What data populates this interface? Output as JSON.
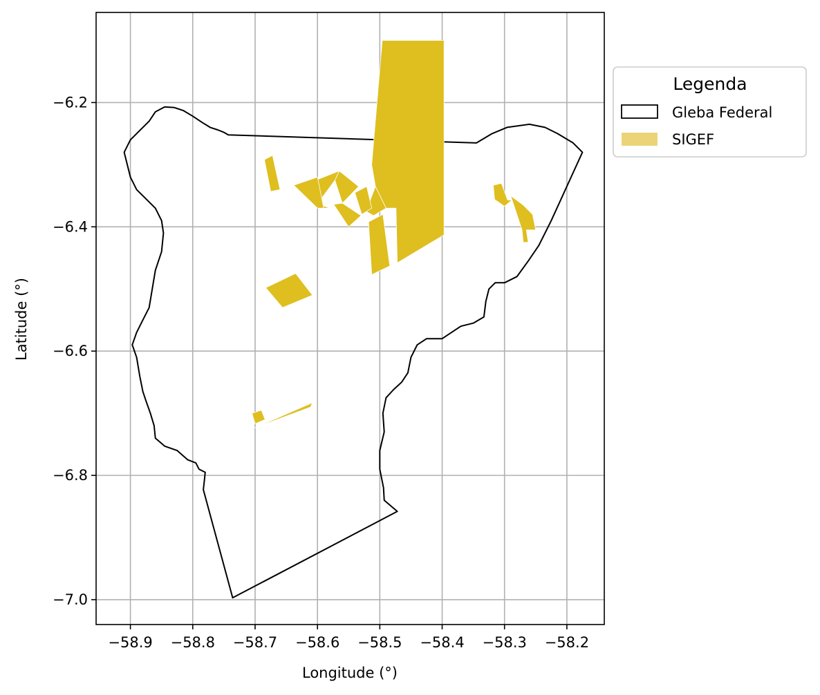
{
  "chart_data": {
    "type": "map",
    "xlabel": "Longitude (°)",
    "ylabel": "Latitude (°)",
    "xlim": [
      -58.955,
      -58.14
    ],
    "ylim": [
      -7.04,
      -6.055
    ],
    "x_ticks": [
      -58.9,
      -58.8,
      -58.7,
      -58.6,
      -58.5,
      -58.4,
      -58.3,
      -58.2
    ],
    "x_tick_labels": [
      "−58.9",
      "−58.8",
      "−58.7",
      "−58.6",
      "−58.5",
      "−58.4",
      "−58.3",
      "−58.2"
    ],
    "y_ticks": [
      -6.2,
      -6.4,
      -6.6,
      -6.8,
      -7.0
    ],
    "y_tick_labels": [
      "−6.2",
      "−6.4",
      "−6.6",
      "−6.8",
      "−7.0"
    ],
    "grid": true,
    "legend": {
      "title": "Legenda",
      "placement": "outside-right-top",
      "entries": [
        {
          "label": "Gleba Federal",
          "style": "outline",
          "color": "#000000"
        },
        {
          "label": "SIGEF",
          "style": "fill",
          "color": "#ebd478"
        }
      ]
    },
    "colors": {
      "sigef_fill": "#dfbe1f",
      "gleba_edge": "#000000",
      "grid": "#b0b0b0"
    },
    "gleba_federal": [
      [
        -58.743,
        -6.252
      ],
      [
        -58.345,
        -6.265
      ],
      [
        -58.32,
        -6.25
      ],
      [
        -58.296,
        -6.24
      ],
      [
        -58.26,
        -6.235
      ],
      [
        -58.235,
        -6.24
      ],
      [
        -58.215,
        -6.25
      ],
      [
        -58.19,
        -6.265
      ],
      [
        -58.175,
        -6.28
      ],
      [
        -58.225,
        -6.39
      ],
      [
        -58.245,
        -6.43
      ],
      [
        -58.262,
        -6.455
      ],
      [
        -58.28,
        -6.48
      ],
      [
        -58.3,
        -6.49
      ],
      [
        -58.315,
        -6.49
      ],
      [
        -58.325,
        -6.5
      ],
      [
        -58.33,
        -6.52
      ],
      [
        -58.333,
        -6.545
      ],
      [
        -58.35,
        -6.555
      ],
      [
        -58.37,
        -6.56
      ],
      [
        -58.385,
        -6.57
      ],
      [
        -58.4,
        -6.58
      ],
      [
        -58.425,
        -6.58
      ],
      [
        -58.44,
        -6.59
      ],
      [
        -58.45,
        -6.61
      ],
      [
        -58.455,
        -6.635
      ],
      [
        -58.465,
        -6.65
      ],
      [
        -58.478,
        -6.662
      ],
      [
        -58.49,
        -6.675
      ],
      [
        -58.495,
        -6.7
      ],
      [
        -58.493,
        -6.73
      ],
      [
        -58.5,
        -6.76
      ],
      [
        -58.5,
        -6.79
      ],
      [
        -58.494,
        -6.82
      ],
      [
        -58.493,
        -6.84
      ],
      [
        -58.472,
        -6.858
      ],
      [
        -58.736,
        -6.997
      ],
      [
        -58.783,
        -6.823
      ],
      [
        -58.781,
        -6.805
      ],
      [
        -58.78,
        -6.795
      ],
      [
        -58.79,
        -6.79
      ],
      [
        -58.795,
        -6.78
      ],
      [
        -58.808,
        -6.775
      ],
      [
        -58.825,
        -6.76
      ],
      [
        -58.845,
        -6.753
      ],
      [
        -58.86,
        -6.74
      ],
      [
        -58.862,
        -6.72
      ],
      [
        -58.868,
        -6.7
      ],
      [
        -58.875,
        -6.68
      ],
      [
        -58.88,
        -6.665
      ],
      [
        -58.885,
        -6.64
      ],
      [
        -58.89,
        -6.61
      ],
      [
        -58.897,
        -6.59
      ],
      [
        -58.89,
        -6.57
      ],
      [
        -58.88,
        -6.55
      ],
      [
        -58.87,
        -6.53
      ],
      [
        -58.865,
        -6.5
      ],
      [
        -58.86,
        -6.47
      ],
      [
        -58.85,
        -6.44
      ],
      [
        -58.847,
        -6.41
      ],
      [
        -58.85,
        -6.39
      ],
      [
        -58.86,
        -6.37
      ],
      [
        -58.875,
        -6.355
      ],
      [
        -58.89,
        -6.34
      ],
      [
        -58.9,
        -6.32
      ],
      [
        -58.905,
        -6.3
      ],
      [
        -58.91,
        -6.28
      ],
      [
        -58.9,
        -6.26
      ],
      [
        -58.885,
        -6.245
      ],
      [
        -58.87,
        -6.23
      ],
      [
        -58.86,
        -6.215
      ],
      [
        -58.845,
        -6.207
      ],
      [
        -58.83,
        -6.208
      ],
      [
        -58.815,
        -6.213
      ],
      [
        -58.8,
        -6.222
      ],
      [
        -58.785,
        -6.232
      ],
      [
        -58.772,
        -6.24
      ],
      [
        -58.76,
        -6.244
      ],
      [
        -58.75,
        -6.248
      ],
      [
        -58.743,
        -6.252
      ]
    ],
    "sigef": [
      [
        [
          -58.496,
          -6.1
        ],
        [
          -58.397,
          -6.1
        ],
        [
          -58.397,
          -6.413
        ],
        [
          -58.472,
          -6.458
        ],
        [
          -58.474,
          -6.37
        ],
        [
          -58.49,
          -6.37
        ],
        [
          -58.507,
          -6.335
        ],
        [
          -58.513,
          -6.3
        ]
      ],
      [
        [
          -58.507,
          -6.335
        ],
        [
          -58.49,
          -6.37
        ],
        [
          -58.51,
          -6.382
        ],
        [
          -58.522,
          -6.375
        ]
      ],
      [
        [
          -58.518,
          -6.392
        ],
        [
          -58.495,
          -6.38
        ],
        [
          -58.484,
          -6.463
        ],
        [
          -58.513,
          -6.477
        ]
      ],
      [
        [
          -58.54,
          -6.345
        ],
        [
          -58.521,
          -6.335
        ],
        [
          -58.513,
          -6.37
        ],
        [
          -58.529,
          -6.38
        ]
      ],
      [
        [
          -58.565,
          -6.31
        ],
        [
          -58.534,
          -6.335
        ],
        [
          -58.56,
          -6.362
        ],
        [
          -58.572,
          -6.325
        ]
      ],
      [
        [
          -58.565,
          -6.31
        ],
        [
          -58.572,
          -6.325
        ],
        [
          -58.6,
          -6.363
        ],
        [
          -58.58,
          -6.37
        ],
        [
          -58.59,
          -6.37
        ],
        [
          -58.608,
          -6.327
        ]
      ],
      [
        [
          -58.6,
          -6.32
        ],
        [
          -58.638,
          -6.333
        ],
        [
          -58.6,
          -6.37
        ],
        [
          -58.59,
          -6.37
        ]
      ],
      [
        [
          -58.574,
          -6.364
        ],
        [
          -58.56,
          -6.362
        ],
        [
          -58.53,
          -6.382
        ],
        [
          -58.55,
          -6.4
        ]
      ],
      [
        [
          -58.685,
          -6.292
        ],
        [
          -58.672,
          -6.285
        ],
        [
          -58.66,
          -6.34
        ],
        [
          -58.675,
          -6.343
        ]
      ],
      [
        [
          -58.635,
          -6.475
        ],
        [
          -58.683,
          -6.498
        ],
        [
          -58.656,
          -6.53
        ],
        [
          -58.608,
          -6.51
        ]
      ],
      [
        [
          -58.75,
          -6.745
        ],
        [
          -58.608,
          -6.683
        ],
        [
          -58.611,
          -6.69
        ],
        [
          -58.705,
          -6.725
        ]
      ],
      [
        [
          -58.705,
          -6.7
        ],
        [
          -58.69,
          -6.695
        ],
        [
          -58.684,
          -6.71
        ],
        [
          -58.7,
          -6.717
        ]
      ],
      [
        [
          -58.318,
          -6.333
        ],
        [
          -58.305,
          -6.33
        ],
        [
          -58.295,
          -6.357
        ],
        [
          -58.288,
          -6.357
        ],
        [
          -58.3,
          -6.367
        ],
        [
          -58.316,
          -6.356
        ]
      ],
      [
        [
          -58.29,
          -6.35
        ],
        [
          -58.27,
          -6.365
        ],
        [
          -58.255,
          -6.38
        ],
        [
          -58.25,
          -6.405
        ],
        [
          -58.265,
          -6.405
        ],
        [
          -58.262,
          -6.425
        ],
        [
          -58.27,
          -6.425
        ],
        [
          -58.272,
          -6.405
        ]
      ]
    ]
  }
}
